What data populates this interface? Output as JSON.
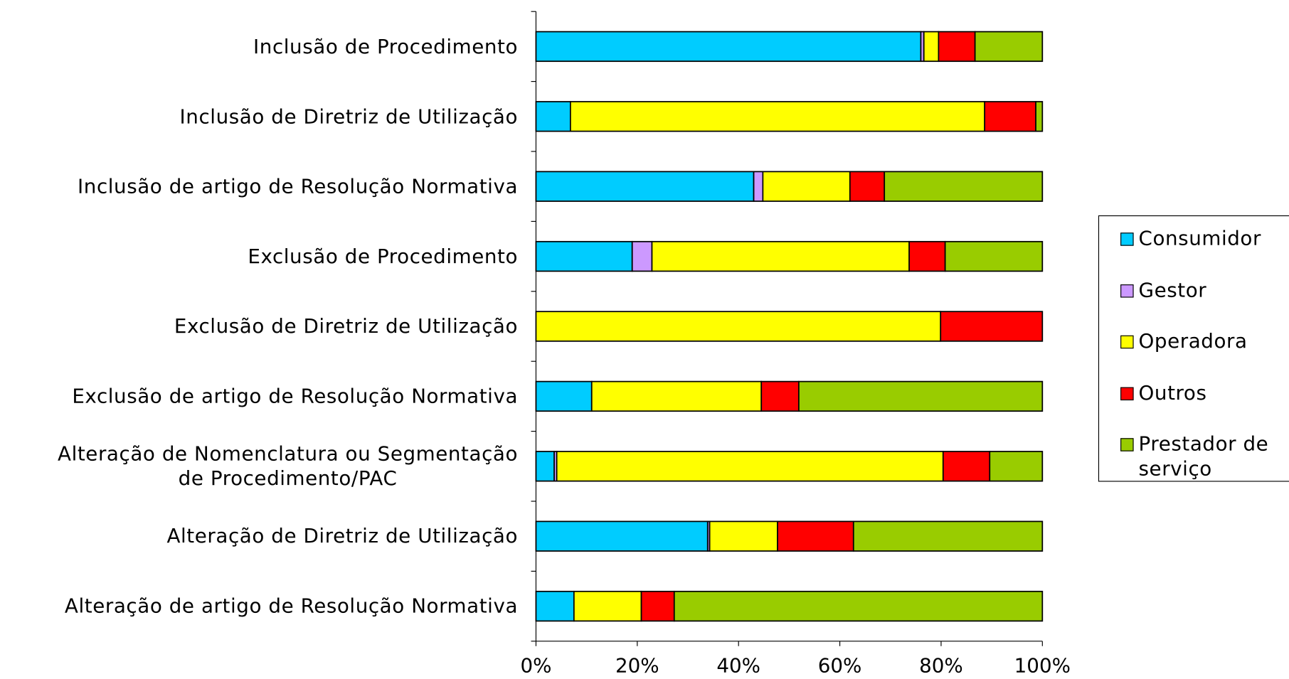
{
  "chart_data": {
    "type": "stacked_barh",
    "categories": [
      "Inclusão de Procedimento",
      "Inclusão de Diretriz de Utilização",
      "Inclusão de artigo de Resolução Normativa",
      "Exclusão de Procedimento",
      "Exclusão de Diretriz de Utilização",
      "Exclusão de artigo de Resolução Normativa",
      "Alteração de Nomenclatura ou Segmentação\nde Procedimento/PAC",
      "Alteração de Diretriz de Utilização",
      "Alteração de artigo de Resolução Normativa"
    ],
    "series": [
      {
        "name": "Consumidor",
        "color": "#00ccff",
        "values": [
          76.0,
          6.8,
          43.0,
          19.0,
          0,
          11.0,
          3.6,
          33.9,
          7.5
        ]
      },
      {
        "name": "Gestor",
        "color": "#cc99ff",
        "values": [
          0.6,
          0,
          1.8,
          3.9,
          0,
          0,
          0.5,
          0.4,
          0
        ]
      },
      {
        "name": "Operadora",
        "color": "#ffff00",
        "values": [
          2.9,
          81.8,
          17.2,
          50.8,
          79.9,
          33.5,
          76.3,
          13.4,
          13.3
        ]
      },
      {
        "name": "Outros",
        "color": "#ff0000",
        "values": [
          7.2,
          10.1,
          6.8,
          7.1,
          20.1,
          7.4,
          9.2,
          15.0,
          6.5
        ]
      },
      {
        "name": "Prestador de serviço",
        "color": "#99cc00",
        "values": [
          13.3,
          1.3,
          31.2,
          19.2,
          0,
          48.1,
          10.4,
          37.3,
          72.7
        ]
      }
    ],
    "xlim": [
      0,
      100
    ],
    "xticks": [
      {
        "value": 0,
        "label": "0%"
      },
      {
        "value": 20,
        "label": "20%"
      },
      {
        "value": 40,
        "label": "40%"
      },
      {
        "value": 60,
        "label": "60%"
      },
      {
        "value": 80,
        "label": "80%"
      },
      {
        "value": 100,
        "label": "100%"
      }
    ],
    "legend": "right"
  }
}
